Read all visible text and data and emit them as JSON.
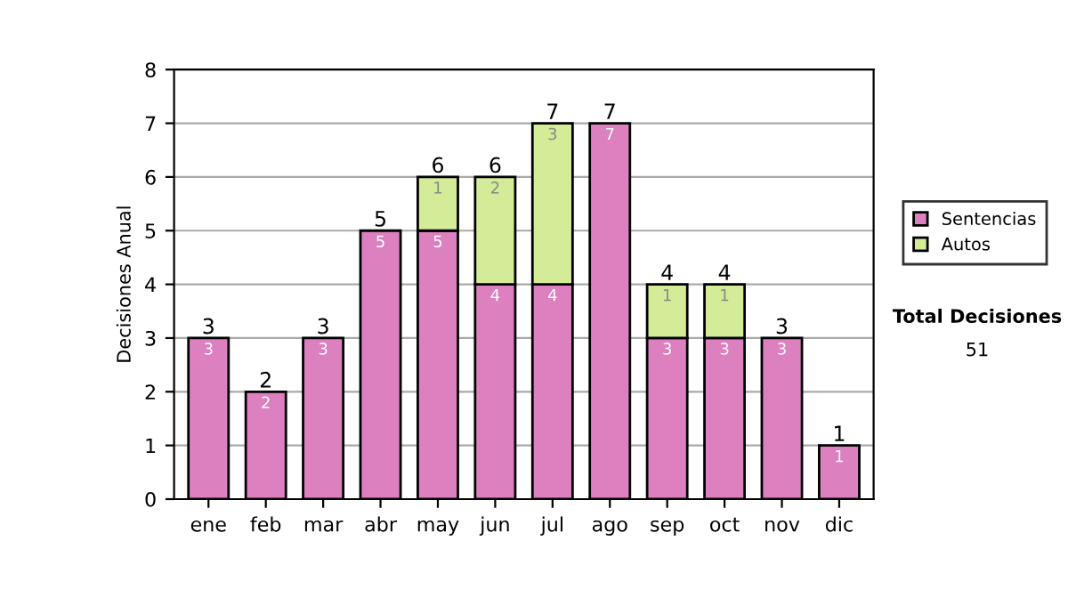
{
  "chart_data": {
    "type": "bar",
    "stacked": true,
    "ylabel": "Decisiones Anual",
    "categories": [
      "ene",
      "feb",
      "mar",
      "abr",
      "may",
      "jun",
      "jul",
      "ago",
      "sep",
      "oct",
      "nov",
      "dic"
    ],
    "series": [
      {
        "name": "Sentencias",
        "color": "#dc80c0",
        "values": [
          3,
          2,
          3,
          5,
          5,
          4,
          4,
          7,
          3,
          3,
          3,
          1
        ],
        "value_labels": [
          "3",
          "2",
          "3",
          "5",
          "5",
          "4",
          "4",
          "7",
          "3",
          "3",
          "3",
          "1"
        ]
      },
      {
        "name": "Autos",
        "color": "#d4eb98",
        "values": [
          null,
          null,
          null,
          null,
          1,
          2,
          3,
          null,
          1,
          1,
          null,
          null
        ],
        "value_labels": [
          null,
          null,
          null,
          null,
          "1",
          "2",
          "3",
          null,
          "1",
          "1",
          null,
          null
        ]
      }
    ],
    "totals": [
      "3",
      "2",
      "3",
      "5",
      "6",
      "6",
      "7",
      "7",
      "4",
      "4",
      "3",
      "1"
    ],
    "ylim": [
      0,
      8
    ],
    "yticks": [
      0,
      1,
      2,
      3,
      4,
      5,
      6,
      7,
      8
    ],
    "grid": "y",
    "legend": "right",
    "annotations": [
      "Total Decisiones",
      "51"
    ]
  }
}
